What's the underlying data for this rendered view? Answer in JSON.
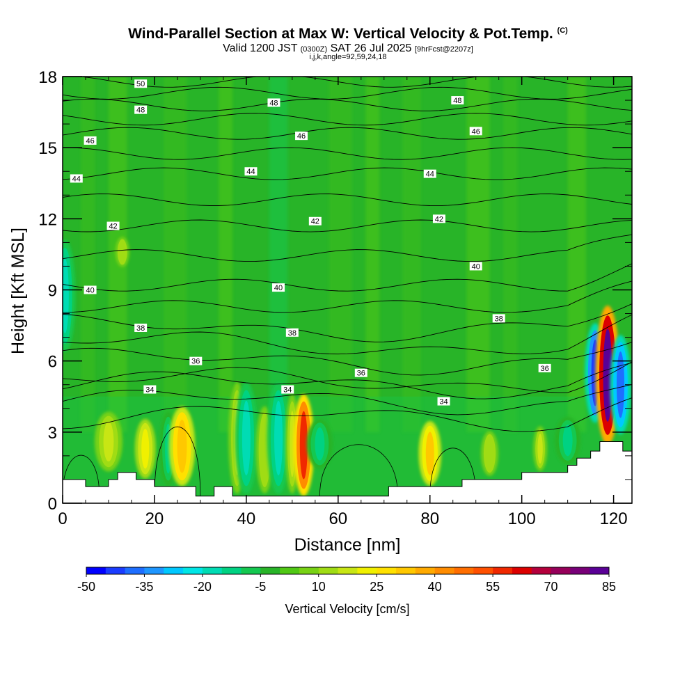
{
  "header": {
    "title": "Wind-Parallel Section at Max W: Vertical Velocity & Pot.Temp.",
    "copyright": "(C)",
    "subtitle_valid": "Valid 1200 JST",
    "subtitle_utc": "(0300Z)",
    "subtitle_date": "SAT 26 Jul 2025",
    "subtitle_fcst": "[9hrFcst@2207z]",
    "params": "i,j,k,angle=92,59,24,18"
  },
  "chart_data": {
    "type": "heatmap",
    "xlabel": "Distance [nm]",
    "ylabel": "Height [Kft MSL]",
    "xlim": [
      0,
      124
    ],
    "ylim": [
      0,
      18
    ],
    "x_ticks": [
      0,
      20,
      40,
      60,
      80,
      100,
      120
    ],
    "y_ticks": [
      0,
      3,
      6,
      9,
      12,
      15,
      18
    ],
    "colorbar": {
      "label": "Vertical Velocity [cm/s]",
      "range": [
        -50,
        85
      ],
      "step": 5,
      "tick_labels": [
        "-50",
        "-35",
        "-20",
        "-5",
        "10",
        "25",
        "40",
        "55",
        "70",
        "85"
      ],
      "colors": [
        "#0000ff",
        "#1a3cff",
        "#1e6eff",
        "#1e96ff",
        "#00c8ff",
        "#00e6e6",
        "#00dcb4",
        "#00d282",
        "#14c850",
        "#28b428",
        "#50c814",
        "#78d214",
        "#a0dc14",
        "#c8e614",
        "#f0f000",
        "#ffe100",
        "#ffc800",
        "#ffaa00",
        "#ff8c00",
        "#ff6e00",
        "#ff5000",
        "#f02800",
        "#dc0000",
        "#b4003c",
        "#96005a",
        "#780078",
        "#5a0096"
      ]
    },
    "theta_isolines": [
      {
        "label": "34",
        "height": 4.3
      },
      {
        "label": "36",
        "height": 6.0
      },
      {
        "label": "38",
        "height": 7.4
      },
      {
        "label": "40",
        "height": 9.2
      },
      {
        "label": "42",
        "height": 11.7
      },
      {
        "label": "44",
        "height": 13.9
      },
      {
        "label": "46",
        "height": 15.6
      },
      {
        "label": "48",
        "height": 16.8
      },
      {
        "label": "50",
        "height": 17.8
      }
    ],
    "contour_labels": [
      {
        "text": "50",
        "x": 17,
        "y": 17.7
      },
      {
        "text": "48",
        "x": 17,
        "y": 16.6
      },
      {
        "text": "48",
        "x": 46,
        "y": 16.9
      },
      {
        "text": "48",
        "x": 86,
        "y": 17.0
      },
      {
        "text": "46",
        "x": 6,
        "y": 15.3
      },
      {
        "text": "46",
        "x": 52,
        "y": 15.5
      },
      {
        "text": "46",
        "x": 90,
        "y": 15.7
      },
      {
        "text": "44",
        "x": 3,
        "y": 13.7
      },
      {
        "text": "44",
        "x": 41,
        "y": 14.0
      },
      {
        "text": "44",
        "x": 80,
        "y": 13.9
      },
      {
        "text": "42",
        "x": 11,
        "y": 11.7
      },
      {
        "text": "42",
        "x": 55,
        "y": 11.9
      },
      {
        "text": "42",
        "x": 82,
        "y": 12.0
      },
      {
        "text": "40",
        "x": 6,
        "y": 9.0
      },
      {
        "text": "40",
        "x": 47,
        "y": 9.1
      },
      {
        "text": "40",
        "x": 90,
        "y": 10.0
      },
      {
        "text": "38",
        "x": 17,
        "y": 7.4
      },
      {
        "text": "38",
        "x": 50,
        "y": 7.2
      },
      {
        "text": "38",
        "x": 95,
        "y": 7.8
      },
      {
        "text": "36",
        "x": 29,
        "y": 6.0
      },
      {
        "text": "36",
        "x": 65,
        "y": 5.5
      },
      {
        "text": "36",
        "x": 105,
        "y": 5.7
      },
      {
        "text": "34",
        "x": 19,
        "y": 4.8
      },
      {
        "text": "34",
        "x": 49,
        "y": 4.8
      },
      {
        "text": "34",
        "x": 83,
        "y": 4.3
      }
    ],
    "terrain": [
      {
        "x": 0,
        "h": 1.0
      },
      {
        "x": 5,
        "h": 0.7
      },
      {
        "x": 10,
        "h": 1.0
      },
      {
        "x": 12,
        "h": 1.3
      },
      {
        "x": 16,
        "h": 1.0
      },
      {
        "x": 20,
        "h": 0.7
      },
      {
        "x": 29,
        "h": 0.3
      },
      {
        "x": 33,
        "h": 0.7
      },
      {
        "x": 37,
        "h": 0.3
      },
      {
        "x": 71,
        "h": 0.7
      },
      {
        "x": 87,
        "h": 1.0
      },
      {
        "x": 100,
        "h": 1.3
      },
      {
        "x": 110,
        "h": 1.6
      },
      {
        "x": 112,
        "h": 1.9
      },
      {
        "x": 115,
        "h": 2.2
      },
      {
        "x": 117,
        "h": 2.6
      },
      {
        "x": 122,
        "h": 2.2
      },
      {
        "x": 124,
        "h": 2.2
      }
    ],
    "features": [
      {
        "x": 0.5,
        "y0": 6.5,
        "y1": 11,
        "w": 1.2,
        "v": -20
      },
      {
        "x": 10,
        "y0": 1.4,
        "y1": 3.8,
        "w": 1.6,
        "v": 15
      },
      {
        "x": 18,
        "y0": 1.1,
        "y1": 3.5,
        "w": 1.2,
        "v": 20
      },
      {
        "x": 23,
        "y0": 0.8,
        "y1": 3.8,
        "w": 1.0,
        "v": -15
      },
      {
        "x": 26,
        "y0": 0.8,
        "y1": 4.0,
        "w": 1.5,
        "v": 32
      },
      {
        "x": 13,
        "y0": 10.0,
        "y1": 11.2,
        "w": 0.8,
        "v": 10
      },
      {
        "x": 38,
        "y0": 0.5,
        "y1": 5.0,
        "w": 1.0,
        "v": 15
      },
      {
        "x": 40,
        "y0": 0.5,
        "y1": 5.0,
        "w": 1.3,
        "v": -22
      },
      {
        "x": 44,
        "y0": 0.5,
        "y1": 4.0,
        "w": 1.0,
        "v": 12
      },
      {
        "x": 47,
        "y0": 0.5,
        "y1": 5.0,
        "w": 1.3,
        "v": -22
      },
      {
        "x": 50,
        "y0": 0.5,
        "y1": 4.5,
        "w": 0.8,
        "v": 15
      },
      {
        "x": 52.5,
        "y0": 0.4,
        "y1": 4.5,
        "w": 1.2,
        "v": 55
      },
      {
        "x": 56,
        "y0": 1.5,
        "y1": 3.5,
        "w": 1.5,
        "v": -15
      },
      {
        "x": 80,
        "y0": 0.8,
        "y1": 3.4,
        "w": 1.3,
        "v": 28
      },
      {
        "x": 93,
        "y0": 1.2,
        "y1": 3.0,
        "w": 1.0,
        "v": 10
      },
      {
        "x": 104,
        "y0": 1.4,
        "y1": 3.2,
        "w": 0.8,
        "v": 15
      },
      {
        "x": 110,
        "y0": 1.7,
        "y1": 3.6,
        "w": 1.5,
        "v": -15
      },
      {
        "x": 116,
        "y0": 3.5,
        "y1": 7.5,
        "w": 1.2,
        "v": -45
      },
      {
        "x": 118.7,
        "y0": 2.6,
        "y1": 8.2,
        "w": 1.4,
        "v": 80
      },
      {
        "x": 121.5,
        "y0": 3.0,
        "y1": 7.0,
        "w": 1.2,
        "v": -40
      }
    ],
    "grid": false
  }
}
